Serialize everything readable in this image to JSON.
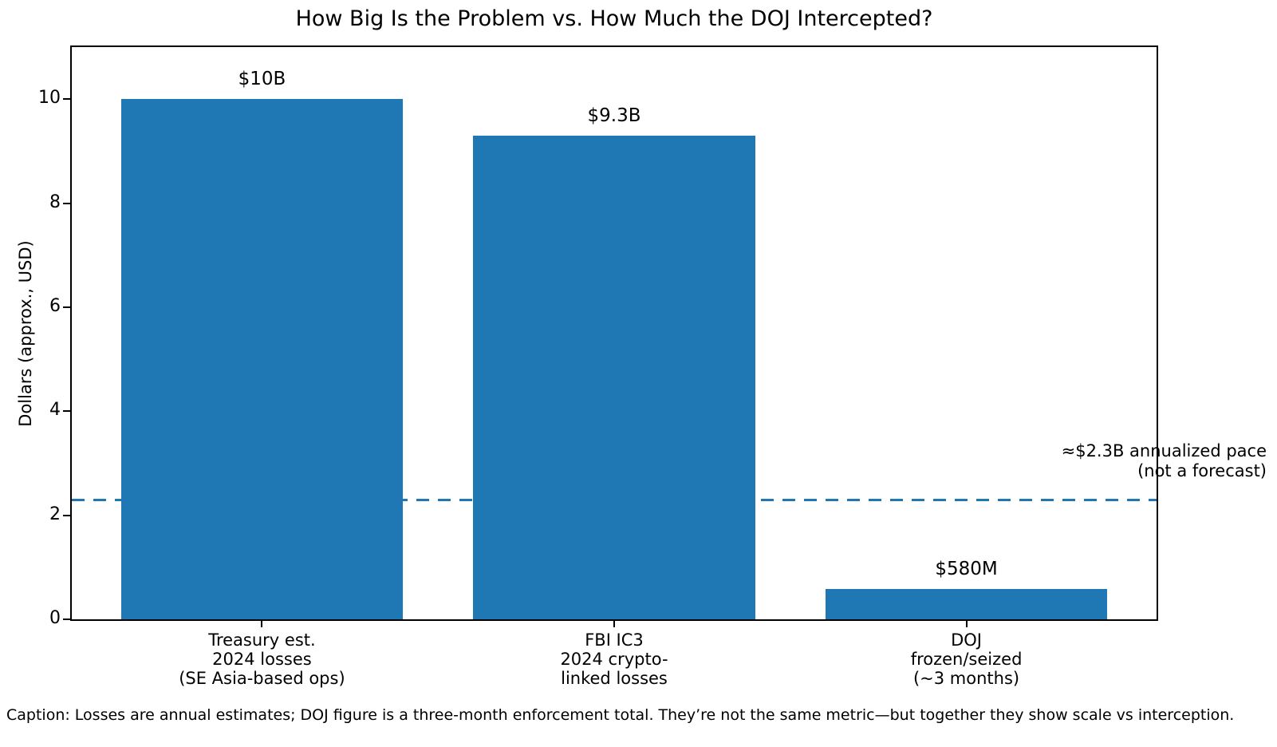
{
  "caption": "Caption: Losses are annual estimates; DOJ figure is a three-month enforcement total. They’re not the same metric—but together they show scale vs interception.",
  "chart_data": {
    "type": "bar",
    "title": "How Big Is the Problem vs. How Much the DOJ Intercepted?",
    "xlabel": "",
    "ylabel": "Dollars (approx., USD)",
    "categories": [
      [
        "Treasury est.",
        "2024 losses",
        "(SE Asia-based ops)"
      ],
      [
        "FBI IC3",
        "2024 crypto-",
        "linked losses"
      ],
      [
        "DOJ",
        "frozen/seized",
        "(~3 months)"
      ]
    ],
    "values": [
      10,
      9.3,
      0.58
    ],
    "bar_labels": [
      "$10B",
      "$9.3B",
      "$580M"
    ],
    "bar_color": "#1f77b4",
    "yticks": [
      0,
      2,
      4,
      6,
      8,
      10
    ],
    "ylim": [
      0,
      11
    ],
    "xlim": [
      -0.54,
      2.54
    ],
    "bar_width": 0.8,
    "grid": false,
    "legend": null,
    "reference_line": {
      "value": 2.3,
      "color": "#1f77b4",
      "style": "dashed",
      "label_lines": [
        "≈$2.3B annualized pace",
        "(not a forecast)"
      ]
    }
  }
}
